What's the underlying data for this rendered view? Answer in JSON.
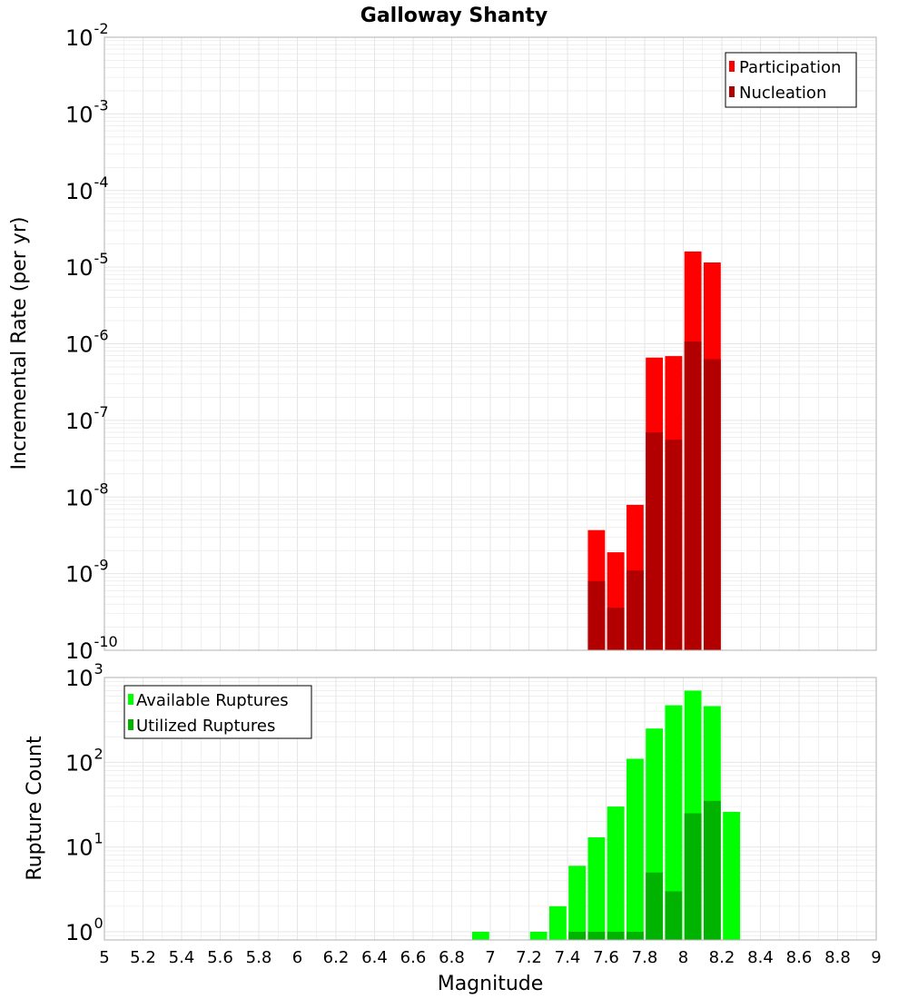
{
  "title": "Galloway Shanty",
  "colors": {
    "participation": "#ff0000",
    "nucleation": "#b20000",
    "available": "#00ff00",
    "utilized": "#00b300",
    "grid": "#e6e6e6",
    "frame": "#b0b0b0"
  },
  "chart_data": [
    {
      "type": "bar",
      "ylabel": "Incremental Rate (per yr)",
      "yscale": "log",
      "ylim": [
        1e-10,
        0.01
      ],
      "xlim": [
        5,
        9
      ],
      "legend_position": "top-right",
      "bin_width": 0.1,
      "series": [
        {
          "name": "Participation",
          "x": [
            7.55,
            7.65,
            7.75,
            7.85,
            7.95,
            8.05,
            8.15
          ],
          "values": [
            3.7e-09,
            1.9e-09,
            7.9e-09,
            6.6e-07,
            6.9e-07,
            1.6e-05,
            1.15e-05
          ]
        },
        {
          "name": "Nucleation",
          "x": [
            7.55,
            7.65,
            7.75,
            7.85,
            7.95,
            8.05,
            8.15
          ],
          "values": [
            8e-10,
            3.6e-10,
            1.1e-09,
            7e-08,
            5.6e-08,
            1.07e-06,
            6.3e-07
          ]
        }
      ]
    },
    {
      "type": "bar",
      "ylabel": "Rupture Count",
      "xlabel": "Magnitude",
      "yscale": "log",
      "ylim": [
        0.8,
        1000
      ],
      "xlim": [
        5,
        9
      ],
      "legend_position": "top-left",
      "bin_width": 0.1,
      "series": [
        {
          "name": "Available Ruptures",
          "x": [
            6.95,
            7.25,
            7.35,
            7.45,
            7.55,
            7.65,
            7.75,
            7.85,
            7.95,
            8.05,
            8.15,
            8.25
          ],
          "values": [
            1,
            1,
            2,
            6,
            13,
            30,
            110,
            250,
            470,
            700,
            460,
            26
          ]
        },
        {
          "name": "Utilized Ruptures",
          "x": [
            7.45,
            7.55,
            7.65,
            7.75,
            7.85,
            7.95,
            8.05,
            8.15
          ],
          "values": [
            1,
            1,
            1,
            1,
            5,
            3,
            25,
            35
          ]
        }
      ]
    }
  ],
  "x_ticks": [
    "5",
    "5.2",
    "5.4",
    "5.6",
    "5.8",
    "6",
    "6.2",
    "6.4",
    "6.6",
    "6.8",
    "7",
    "7.2",
    "7.4",
    "7.6",
    "7.8",
    "8",
    "8.2",
    "8.4",
    "8.6",
    "8.8",
    "9"
  ],
  "top_y_ticks": {
    "bases": [
      "10",
      "10",
      "10",
      "10",
      "10",
      "10",
      "10",
      "10",
      "10"
    ],
    "exponents": [
      "-10",
      "-9",
      "-8",
      "-7",
      "-6",
      "-5",
      "-4",
      "-3",
      "-2"
    ]
  },
  "bottom_y_ticks": {
    "bases": [
      "10",
      "10",
      "10",
      "10"
    ],
    "exponents": [
      "0",
      "1",
      "2",
      "3"
    ]
  }
}
